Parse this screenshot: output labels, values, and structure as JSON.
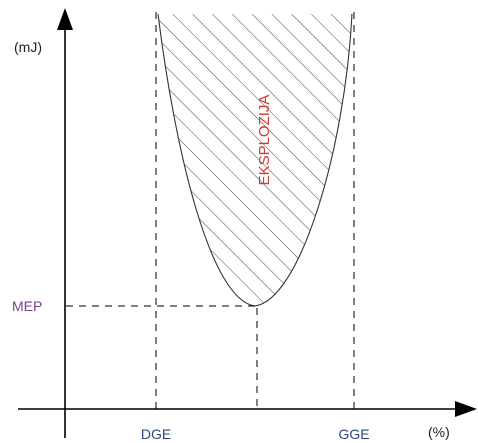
{
  "diagram": {
    "y_axis_unit": "(mJ)",
    "x_axis_unit": "(%)",
    "mep_label": "MEP",
    "dge_label": "DGE",
    "gge_label": "GGE",
    "region_label": "EKSPLOZIJA",
    "colors": {
      "axis": "#000000",
      "text": "#1f1f1f",
      "mep": "#7a3d8f",
      "tick_labels": "#2e4a7d",
      "region_label": "#d03a32"
    }
  }
}
